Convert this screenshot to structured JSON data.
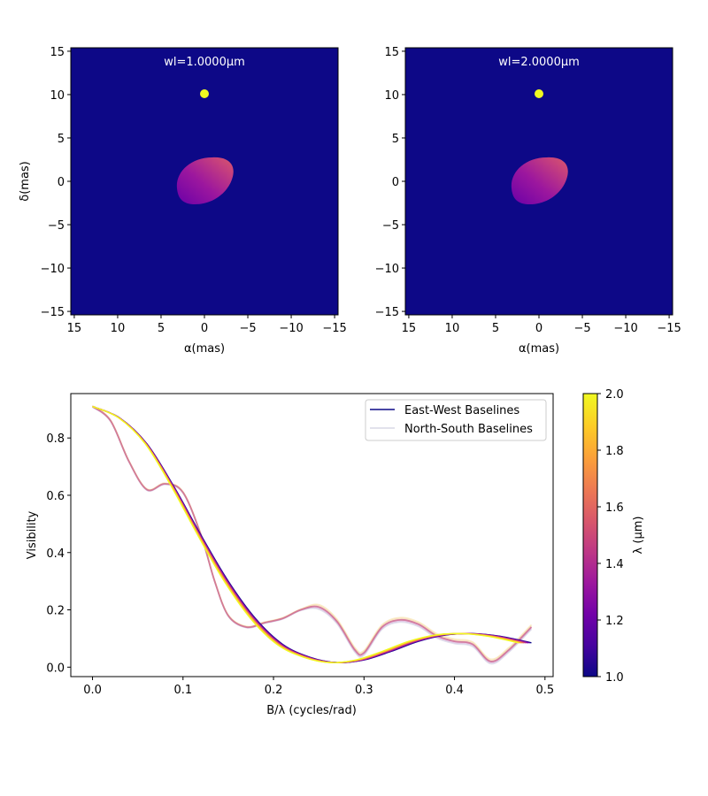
{
  "colors": {
    "background": "#0d0887",
    "star": "#f0f921",
    "ns_baselines": "#c8c8dc",
    "ew_baselines": "#0d0887",
    "plasma": [
      "#0d0887",
      "#46039f",
      "#7201a8",
      "#9c179e",
      "#bd3786",
      "#d8576b",
      "#ed7953",
      "#fb9f3a",
      "#fdca26",
      "#f0f921"
    ]
  },
  "chart_data": [
    {
      "type": "heatmap",
      "title": "wl=1.0000μm",
      "xlabel": "α(mas)",
      "ylabel": "δ(mas)",
      "xlim": [
        15.4,
        -15.4
      ],
      "ylim": [
        -15.4,
        15.4
      ],
      "xticks": [
        15,
        10,
        5,
        0,
        -5,
        -10,
        -15
      ],
      "xtick_labels": [
        "15",
        "10",
        "5",
        "0",
        "−5",
        "−10",
        "−15"
      ],
      "yticks": [
        15,
        10,
        5,
        0,
        -5,
        -10,
        -15
      ],
      "ytick_labels": [
        "15",
        "10",
        "5",
        "0",
        "−5",
        "−10",
        "−15"
      ],
      "components": [
        {
          "name": "point source",
          "x": 0,
          "y": 10
        },
        {
          "name": "extended source",
          "x": 0,
          "y": 0
        }
      ]
    },
    {
      "type": "heatmap",
      "title": "wl=2.0000μm",
      "xlabel": "α(mas)",
      "ylabel": "",
      "xlim": [
        15.4,
        -15.4
      ],
      "ylim": [
        -15.4,
        15.4
      ],
      "xticks": [
        15,
        10,
        5,
        0,
        -5,
        -10,
        -15
      ],
      "xtick_labels": [
        "15",
        "10",
        "5",
        "0",
        "−5",
        "−10",
        "−15"
      ],
      "yticks": [
        15,
        10,
        5,
        0,
        -5,
        -10,
        -15
      ],
      "ytick_labels": [
        "15",
        "10",
        "5",
        "0",
        "−5",
        "−10",
        "−15"
      ],
      "components": [
        {
          "name": "point source",
          "x": 0,
          "y": 10
        },
        {
          "name": "extended source",
          "x": 0,
          "y": 0
        }
      ]
    },
    {
      "type": "line",
      "xlabel": "B/λ (cycles/rad)",
      "ylabel": "Visibility",
      "xlim": [
        -0.024,
        0.509
      ],
      "ylim": [
        -0.033,
        0.955
      ],
      "xticks": [
        0.0,
        0.1,
        0.2,
        0.3,
        0.4,
        0.5
      ],
      "xtick_labels": [
        "0.0",
        "0.1",
        "0.2",
        "0.3",
        "0.4",
        "0.5"
      ],
      "yticks": [
        0.0,
        0.2,
        0.4,
        0.6,
        0.8
      ],
      "ytick_labels": [
        "0.0",
        "0.2",
        "0.4",
        "0.6",
        "0.8"
      ],
      "legend_position": "top-right",
      "legend": [
        "East-West Baselines",
        "North-South Baselines"
      ],
      "colorbar": {
        "label": "λ (μm)",
        "range": [
          1.0,
          2.0
        ],
        "ticks": [
          1.0,
          1.2,
          1.4,
          1.6,
          1.8,
          2.0
        ],
        "tick_labels": [
          "1.0",
          "1.2",
          "1.4",
          "1.6",
          "1.8",
          "2.0"
        ]
      },
      "series": [
        {
          "name": "East-West Baselines",
          "x": [
            0.0,
            0.03,
            0.06,
            0.09,
            0.12,
            0.15,
            0.18,
            0.21,
            0.24,
            0.27,
            0.3,
            0.33,
            0.36,
            0.39,
            0.42,
            0.45,
            0.485
          ],
          "y": [
            0.91,
            0.87,
            0.78,
            0.63,
            0.46,
            0.3,
            0.17,
            0.08,
            0.035,
            0.016,
            0.025,
            0.055,
            0.09,
            0.112,
            0.117,
            0.108,
            0.085
          ]
        },
        {
          "name": "North-South Baselines",
          "x": [
            0.0,
            0.02,
            0.04,
            0.06,
            0.08,
            0.1,
            0.12,
            0.135,
            0.15,
            0.17,
            0.19,
            0.21,
            0.23,
            0.25,
            0.27,
            0.29,
            0.3,
            0.32,
            0.34,
            0.36,
            0.38,
            0.4,
            0.42,
            0.44,
            0.46,
            0.485
          ],
          "y": [
            0.91,
            0.86,
            0.72,
            0.62,
            0.64,
            0.61,
            0.46,
            0.3,
            0.18,
            0.14,
            0.155,
            0.17,
            0.2,
            0.21,
            0.16,
            0.06,
            0.05,
            0.14,
            0.165,
            0.15,
            0.11,
            0.09,
            0.08,
            0.02,
            0.06,
            0.14
          ]
        }
      ]
    }
  ]
}
